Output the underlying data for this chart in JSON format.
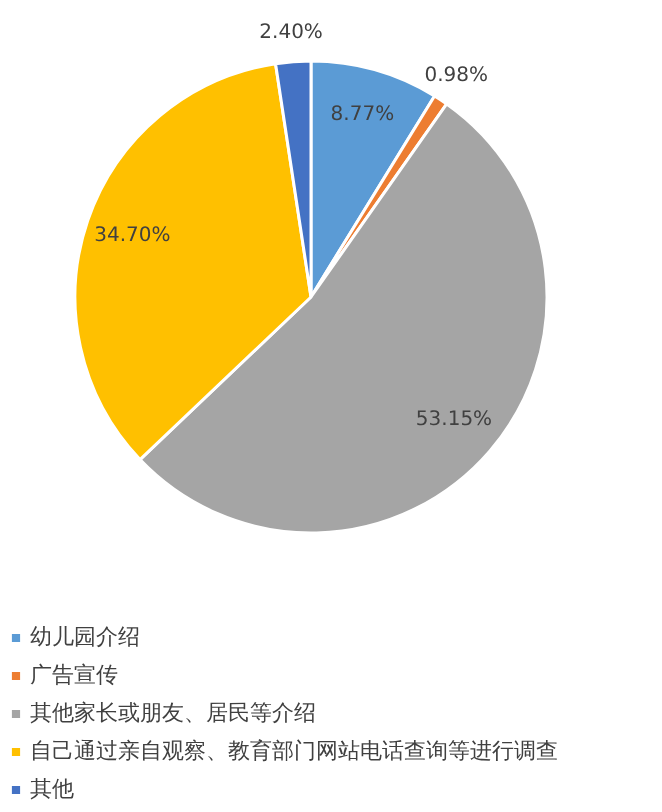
{
  "chart_data": {
    "type": "pie",
    "categories": [
      "幼儿园介绍",
      "广告宣传",
      "其他家长或朋友、居民等介绍",
      "自己通过亲自观察、教育部门网站电话查询等进行调查",
      "其他"
    ],
    "values": [
      8.77,
      0.98,
      53.15,
      34.7,
      2.4
    ],
    "colors": [
      "#5b9bd5",
      "#ed7d31",
      "#a5a5a5",
      "#ffc000",
      "#4472c4"
    ],
    "value_labels": [
      "8.77%",
      "0.98%",
      "53.15%",
      "34.70%",
      "2.40%"
    ],
    "legend": "bottom"
  }
}
